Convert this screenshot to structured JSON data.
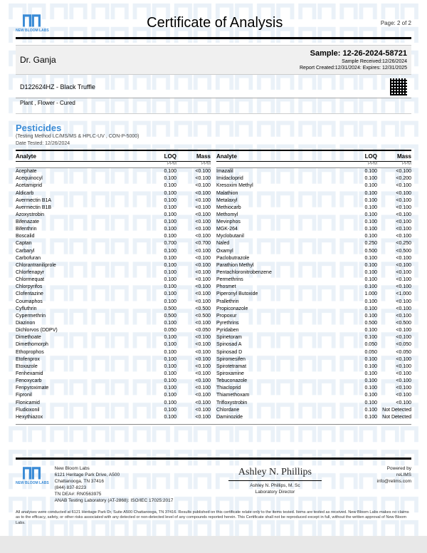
{
  "page_label": "Page: 2 of 2",
  "doc_title": "Certificate of Analysis",
  "lab_name": "NEW BLOOM LABS",
  "client": "Dr. Ganja",
  "sample_id": "Sample: 12-26-2024-58721",
  "received": "Sample Received:12/26/2024",
  "created_expires": "Report Created:12/31/2024: Expires: 12/31/2025",
  "sample_name": "D122624HZ - Black Truffle",
  "matrix": "Plant , Flower - Cured",
  "section_title": "Pesticides",
  "method": "(Testing Method LC/MS/MS & HPLC-UV , CON-P-5000)",
  "date_tested": "Date Tested: 12/26/2024",
  "headers": {
    "analyte": "Analyte",
    "loq": "LOQ",
    "mass": "Mass",
    "unit": "PPM"
  },
  "rows_left": [
    {
      "a": "Acephate",
      "l": "0.100",
      "m": "<0.100"
    },
    {
      "a": "Acequinocyl",
      "l": "0.100",
      "m": "<0.100"
    },
    {
      "a": "Acetamiprid",
      "l": "0.100",
      "m": "<0.100"
    },
    {
      "a": "Aldicarb",
      "l": "0.100",
      "m": "<0.100"
    },
    {
      "a": "Avermectin B1A",
      "l": "0.100",
      "m": "<0.100"
    },
    {
      "a": "Avermectin B1B",
      "l": "0.100",
      "m": "<0.100"
    },
    {
      "a": "Azoxystrobin",
      "l": "0.100",
      "m": "<0.100"
    },
    {
      "a": "Bifenazate",
      "l": "0.100",
      "m": "<0.100"
    },
    {
      "a": "Bifenthrin",
      "l": "0.100",
      "m": "<0.100"
    },
    {
      "a": "Boscalid",
      "l": "0.100",
      "m": "<0.100"
    },
    {
      "a": "Captan",
      "l": "0.700",
      "m": "<0.700"
    },
    {
      "a": "Carbaryl",
      "l": "0.100",
      "m": "<0.100"
    },
    {
      "a": "Carbofuran",
      "l": "0.100",
      "m": "<0.100"
    },
    {
      "a": "Chlorantraniliprole",
      "l": "0.100",
      "m": "<0.100"
    },
    {
      "a": "Chlorfenapyr",
      "l": "0.100",
      "m": "<0.100"
    },
    {
      "a": "Chlormequat",
      "l": "0.100",
      "m": "<0.100"
    },
    {
      "a": "Chlorpyrifos",
      "l": "0.100",
      "m": "<0.100"
    },
    {
      "a": "Clofentazine",
      "l": "0.100",
      "m": "<0.100"
    },
    {
      "a": "Coumaphos",
      "l": "0.100",
      "m": "<0.100"
    },
    {
      "a": "Cyfluthrin",
      "l": "0.500",
      "m": "<0.500"
    },
    {
      "a": "Cypermethrin",
      "l": "0.500",
      "m": "<0.500"
    },
    {
      "a": "Diazinon",
      "l": "0.100",
      "m": "<0.100"
    },
    {
      "a": "Dichlorvos (DDPV)",
      "l": "0.050",
      "m": "<0.050"
    },
    {
      "a": "Dimethoate",
      "l": "0.100",
      "m": "<0.100"
    },
    {
      "a": "Dimethomorph",
      "l": "0.100",
      "m": "<0.100"
    },
    {
      "a": "Ethoprophos",
      "l": "0.100",
      "m": "<0.100"
    },
    {
      "a": "Etofenprox",
      "l": "0.100",
      "m": "<0.100"
    },
    {
      "a": "Etoxazole",
      "l": "0.100",
      "m": "<0.100"
    },
    {
      "a": "Fenhexamid",
      "l": "0.100",
      "m": "<0.100"
    },
    {
      "a": "Fenoxycarb",
      "l": "0.100",
      "m": "<0.100"
    },
    {
      "a": "Fenpyroximate",
      "l": "0.100",
      "m": "<0.100"
    },
    {
      "a": "Fipronil",
      "l": "0.100",
      "m": "<0.100"
    },
    {
      "a": "Flonicamid",
      "l": "0.100",
      "m": "<0.100"
    },
    {
      "a": "Fludioxonil",
      "l": "0.100",
      "m": "<0.100"
    },
    {
      "a": "Hexythiazox",
      "l": "0.100",
      "m": "<0.100"
    }
  ],
  "rows_right": [
    {
      "a": "Imazalil",
      "l": "0.100",
      "m": "<0.100"
    },
    {
      "a": "Imidacloprid",
      "l": "0.100",
      "m": "<0.200"
    },
    {
      "a": "Kresoxim Methyl",
      "l": "0.100",
      "m": "<0.100"
    },
    {
      "a": "Malathion",
      "l": "0.100",
      "m": "<0.100"
    },
    {
      "a": "Metalaxyl",
      "l": "0.100",
      "m": "<0.100"
    },
    {
      "a": "Methiocarb",
      "l": "0.100",
      "m": "<0.100"
    },
    {
      "a": "Methomyl",
      "l": "0.100",
      "m": "<0.100"
    },
    {
      "a": "Mevinphos",
      "l": "0.100",
      "m": "<0.100"
    },
    {
      "a": "MGK-264",
      "l": "0.100",
      "m": "<0.100"
    },
    {
      "a": "Myclobutanil",
      "l": "0.100",
      "m": "<0.100"
    },
    {
      "a": "Naled",
      "l": "0.250",
      "m": "<0.250"
    },
    {
      "a": "Oxamyl",
      "l": "0.500",
      "m": "<0.500"
    },
    {
      "a": "Paclobutrazole",
      "l": "0.100",
      "m": "<0.100"
    },
    {
      "a": "Parathion Methyl",
      "l": "0.100",
      "m": "<0.100"
    },
    {
      "a": "Pentachloronitrobenzene",
      "l": "0.100",
      "m": "<0.100"
    },
    {
      "a": "Permethrins",
      "l": "0.100",
      "m": "<0.100"
    },
    {
      "a": "Phosmet",
      "l": "0.100",
      "m": "<0.100"
    },
    {
      "a": "Piperonyl Butoxide",
      "l": "1.000",
      "m": "<1.000"
    },
    {
      "a": "Prallethrin",
      "l": "0.100",
      "m": "<0.100"
    },
    {
      "a": "Propiconazole",
      "l": "0.100",
      "m": "<0.100"
    },
    {
      "a": "Propoxur",
      "l": "0.100",
      "m": "<0.100"
    },
    {
      "a": "Pyrethrins",
      "l": "0.500",
      "m": "<0.500"
    },
    {
      "a": "Pyridaben",
      "l": "0.100",
      "m": "<0.100"
    },
    {
      "a": "Spinetoram",
      "l": "0.100",
      "m": "<0.100"
    },
    {
      "a": "Spinosad A",
      "l": "0.050",
      "m": "<0.050"
    },
    {
      "a": "Spinosad D",
      "l": "0.050",
      "m": "<0.050"
    },
    {
      "a": "Spiromesifen",
      "l": "0.100",
      "m": "<0.100"
    },
    {
      "a": "Spirotetramat",
      "l": "0.100",
      "m": "<0.100"
    },
    {
      "a": "Spiroxamine",
      "l": "0.100",
      "m": "<0.100"
    },
    {
      "a": "Tebuconazole",
      "l": "0.100",
      "m": "<0.100"
    },
    {
      "a": "Thiacloprid",
      "l": "0.100",
      "m": "<0.100"
    },
    {
      "a": "Thiamethoxam",
      "l": "0.100",
      "m": "<0.100"
    },
    {
      "a": "Trifloxystrobin",
      "l": "0.100",
      "m": "<0.100"
    },
    {
      "a": "Chlordane",
      "l": "0.100",
      "m": "Not Detected"
    },
    {
      "a": "Daminozide",
      "l": "0.100",
      "m": "Not Detected"
    }
  ],
  "footer": {
    "company": "New Bloom Labs",
    "addr1": "6121 Heritage Park Drive, A500",
    "addr2": "Chattanooga, TN 37416",
    "phone": "(844) 837-8223",
    "dea": "TN DEA#: RN0563975",
    "accred": "ANAB Testing Laboratory (AT-2868): ISO/IEC 17025:2017",
    "dirname": "Ashley N. Phillips, M. Sc",
    "dirtitle": "Laboratory Director",
    "sig": "Ashley N. Phillips",
    "powered": "Powered by",
    "sys": "reLIMS",
    "email": "info@relims.com"
  },
  "disclaimer": "All analyses were conducted at 6121 Heritage Park Dr, Suite A500 Chattanooga, TN 37416. Results published on this certificate relate only to the items tested. Items are tested as received. New Bloom Labs makes no claims as to the efficacy, safety, or other risks associated with any detected or non-detected level of any compounds reported herein. This Certificate shall not be reproduced except in full, without the written approval of New Bloom Labs.",
  "colors": {
    "accent": "#3a8bd6"
  }
}
